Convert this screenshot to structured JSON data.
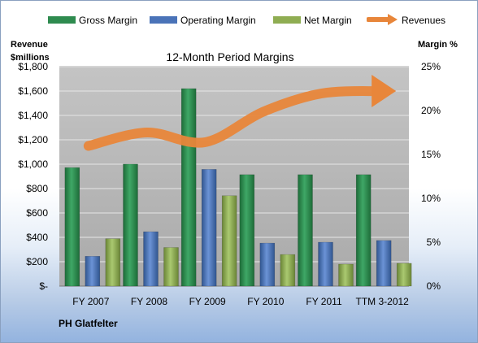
{
  "chart_data": {
    "type": "bar",
    "title": "12-Month Period Margins",
    "company": "PH Glatfelter",
    "categories": [
      "FY 2007",
      "FY 2008",
      "FY 2009",
      "FY 2010",
      "FY 2011",
      "TTM 3-2012"
    ],
    "left_axis": {
      "title_line1": "Revenue",
      "title_line2": "$millions",
      "ticks": [
        "$-",
        "$200",
        "$400",
        "$600",
        "$800",
        "$1,000",
        "$1,200",
        "$1,400",
        "$1,600",
        "$1,800"
      ],
      "ylim": [
        0,
        1800
      ]
    },
    "right_axis": {
      "title": "Margin %",
      "ticks": [
        "0%",
        "5%",
        "10%",
        "15%",
        "20%",
        "25%"
      ],
      "ylim": [
        0,
        25
      ]
    },
    "series": [
      {
        "name": "Gross Margin",
        "axis": "right",
        "kind": "bar",
        "color": "#2e8b4f",
        "values": [
          13.5,
          13.9,
          22.5,
          12.7,
          12.7,
          12.7
        ]
      },
      {
        "name": "Operating Margin",
        "axis": "right",
        "kind": "bar",
        "color": "#4a73b8",
        "values": [
          3.4,
          6.2,
          13.3,
          4.9,
          5.0,
          5.2
        ]
      },
      {
        "name": "Net Margin",
        "axis": "right",
        "kind": "bar",
        "color": "#8fad52",
        "values": [
          5.4,
          4.4,
          10.3,
          3.6,
          2.5,
          2.6
        ]
      },
      {
        "name": "Revenues",
        "axis": "left",
        "kind": "line",
        "color": "#e8863a",
        "values": [
          1150,
          1260,
          1180,
          1430,
          1580,
          1600
        ]
      }
    ],
    "grid": true,
    "legend_position": "top"
  },
  "colors": {
    "plot_background": "#b5b5b5",
    "gross": "#2e8b4f",
    "operating": "#4a73b8",
    "net": "#8fad52",
    "revenues": "#e8863a"
  }
}
